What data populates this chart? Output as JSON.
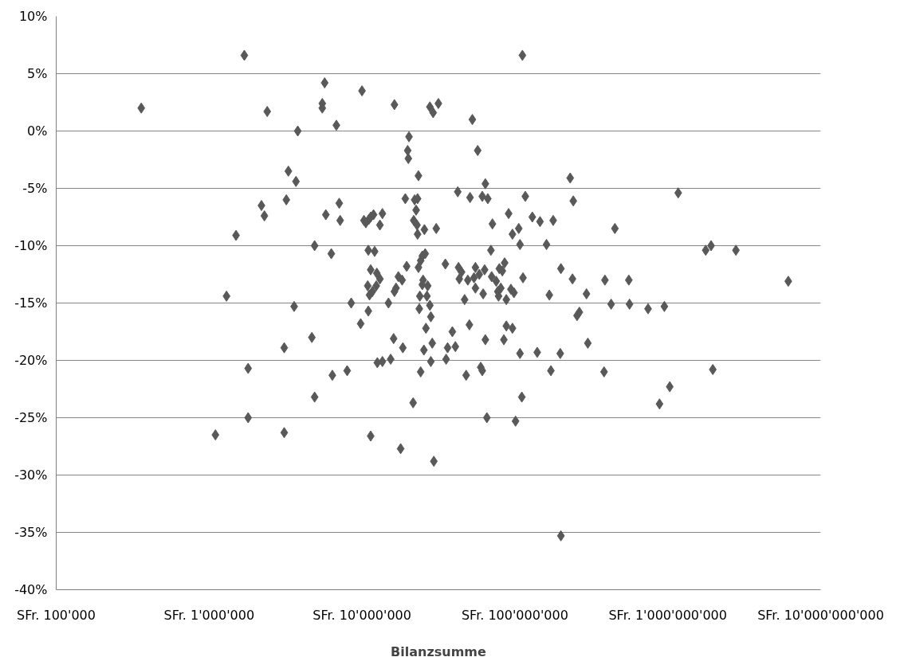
{
  "chart_data": {
    "type": "scatter",
    "xlabel": "Bilanzsumme",
    "log": "x",
    "grid": "y",
    "marker": "diamond",
    "color": "#595959",
    "xlim": [
      100000,
      10000000000
    ],
    "xticks": [
      {
        "value": 100000,
        "label": "SFr. 100'000"
      },
      {
        "value": 1000000,
        "label": "SFr. 1'000'000"
      },
      {
        "value": 10000000,
        "label": "SFr. 10'000'000"
      },
      {
        "value": 100000000,
        "label": "SFr. 100'000'000"
      },
      {
        "value": 1000000000,
        "label": "SFr. 1'000'000'000"
      },
      {
        "value": 10000000000,
        "label": "SFr. 10'000'000'000"
      }
    ],
    "ylim": [
      -40,
      10
    ],
    "yticks": [
      {
        "value": 10,
        "label": "10%"
      },
      {
        "value": 5,
        "label": "5%"
      },
      {
        "value": 0,
        "label": "0%"
      },
      {
        "value": -5,
        "label": "-5%"
      },
      {
        "value": -10,
        "label": "-10%"
      },
      {
        "value": -15,
        "label": "-15%"
      },
      {
        "value": -20,
        "label": "-20%"
      },
      {
        "value": -25,
        "label": "-25%"
      },
      {
        "value": -30,
        "label": "-30%"
      },
      {
        "value": -35,
        "label": "-35%"
      },
      {
        "value": -40,
        "label": "-40%"
      }
    ],
    "x": [
      360000.0,
      1100000.0,
      1300000.0,
      1500000.0,
      1700000.0,
      1800000.0,
      1800000.0,
      2200000.0,
      2300000.0,
      2400000.0,
      3100000.0,
      3200000.0,
      3300000.0,
      3700000.0,
      3600000.0,
      3800000.0,
      3100000.0,
      4700000.0,
      4900000.0,
      4900000.0,
      5500000.0,
      5500000.0,
      5700000.0,
      5800000.0,
      6300000.0,
      6400000.0,
      6800000.0,
      7100000.0,
      7200000.0,
      8000000.0,
      8500000.0,
      9800000.0,
      10000000.0,
      10300000.0,
      10600000.0,
      10900000.0,
      11000000.0,
      11100000.0,
      11400000.0,
      11000000.0,
      11200000.0,
      11700000.0,
      11400000.0,
      11400000.0,
      11900000.0,
      12100000.0,
      12400000.0,
      12500000.0,
      12600000.0,
      13100000.0,
      13100000.0,
      13600000.0,
      13600000.0,
      14900000.0,
      15400000.0,
      16100000.0,
      16300000.0,
      16300000.0,
      16700000.0,
      17300000.0,
      17900000.0,
      18300000.0,
      18500000.0,
      19200000.0,
      19600000.0,
      19900000.0,
      20100000.0,
      20300000.0,
      21600000.0,
      21800000.0,
      22100000.0,
      22600000.0,
      22900000.0,
      23100000.0,
      23100000.0,
      23400000.0,
      23400000.0,
      23700000.0,
      23900000.0,
      24200000.0,
      24200000.0,
      24800000.0,
      24800000.0,
      25100000.0,
      25400000.0,
      25600000.0,
      25900000.0,
      26200000.0,
      26600000.0,
      26900000.0,
      27800000.0,
      28200000.0,
      28200000.0,
      28800000.0,
      29500000.0,
      27800000.0,
      29200000.0,
      31600000.0,
      30600000.0,
      35100000.0,
      35500000.0,
      36300000.0,
      39000000.0,
      40800000.0,
      42300000.0,
      42800000.0,
      43300000.0,
      44800000.0,
      46900000.0,
      48000000.0,
      49200000.0,
      50400000.0,
      50900000.0,
      52700000.0,
      54000000.0,
      55200000.0,
      55200000.0,
      57100000.0,
      58500000.0,
      59800000.0,
      61200000.0,
      62000000.0,
      63400000.0,
      64100000.0,
      64100000.0,
      61200000.0,
      65600000.0,
      66500000.0,
      69700000.0,
      70500000.0,
      71300000.0,
      75500000.0,
      77300000.0,
      78200000.0,
      79100000.0,
      80900000.0,
      82800000.0,
      84700000.0,
      85700000.0,
      87900000.0,
      87900000.0,
      91000000.0,
      94200000.0,
      96400000.0,
      98600000.0,
      101000000.0,
      106000000.0,
      108000000.0,
      111000000.0,
      112000000.0,
      113000000.0,
      117000000.0,
      96400000.0,
      108000000.0,
      130000000.0,
      146000000.0,
      161000000.0,
      140000000.0,
      168000000.0,
      230000000.0,
      241000000.0,
      178000000.0,
      200000000.0,
      238000000.0,
      198000000.0,
      172000000.0,
      200000000.0,
      255000000.0,
      264000000.0,
      294000000.0,
      300000000.0,
      383000000.0,
      388000000.0,
      426000000.0,
      451000000.0,
      556000000.0,
      562000000.0,
      743000000.0,
      950000000.0,
      883000000.0,
      1030000000.0,
      1170000000.0,
      1770000000.0,
      1920000000.0,
      2790000000.0,
      1970000000.0,
      6140000000.0
    ],
    "values": [
      2.0,
      -26.5,
      -14.4,
      -9.1,
      6.6,
      -20.7,
      -25.0,
      -6.5,
      -7.4,
      1.7,
      -18.9,
      -6.0,
      -3.5,
      -4.4,
      -15.3,
      0.0,
      -26.3,
      -18.0,
      -23.2,
      -10.0,
      2.4,
      2.0,
      4.2,
      -7.3,
      -10.7,
      -21.3,
      0.5,
      -6.3,
      -7.8,
      -20.9,
      -15.0,
      -16.8,
      3.5,
      -7.8,
      -8.0,
      -13.5,
      -15.7,
      -7.7,
      -7.5,
      -10.4,
      -14.3,
      -14.0,
      -12.1,
      -26.6,
      -7.3,
      -10.5,
      -13.5,
      -12.4,
      -20.2,
      -8.2,
      -12.9,
      -7.2,
      -20.1,
      -15.0,
      -19.9,
      -18.1,
      2.3,
      -14.0,
      -13.7,
      -12.7,
      -27.7,
      -13.0,
      -18.9,
      -5.9,
      -11.8,
      -1.7,
      -2.4,
      -0.5,
      -23.7,
      -7.8,
      -6.0,
      -6.9,
      -8.2,
      -5.9,
      -9.0,
      -3.9,
      -11.9,
      -15.5,
      -14.4,
      -21.0,
      -11.3,
      -10.9,
      -13.4,
      -13.0,
      -19.1,
      -8.6,
      -10.7,
      -17.2,
      -14.4,
      -13.5,
      -15.2,
      -16.2,
      -20.1,
      -18.5,
      -28.8,
      2.1,
      1.6,
      2.4,
      -8.5,
      -11.6,
      -19.9,
      -18.9,
      -17.5,
      -18.8,
      -5.3,
      -11.9,
      -12.9,
      -12.3,
      -14.7,
      -21.3,
      -13.0,
      -16.9,
      -5.8,
      1.0,
      -12.8,
      -13.7,
      -11.9,
      -1.7,
      -12.5,
      -20.6,
      -20.9,
      -14.2,
      -12.1,
      -18.2,
      -4.6,
      -5.7,
      -25.0,
      -5.9,
      -10.4,
      -12.7,
      -8.1,
      -13.1,
      -14.0,
      -14.4,
      -12.0,
      -13.7,
      -12.2,
      -18.2,
      -11.5,
      -14.7,
      -17.0,
      -7.2,
      -13.8,
      -17.2,
      -14.1,
      -25.3,
      -8.5,
      -19.4,
      -23.2,
      6.6,
      -12.8,
      -5.7,
      -9.0,
      -9.9,
      -7.5,
      -7.9,
      -9.9,
      -19.3,
      -14.3,
      -4.1,
      -6.1,
      -7.8,
      -12.0,
      -12.9,
      -19.4,
      -20.9,
      -35.3,
      -16.1,
      -15.8,
      -14.2,
      -18.5,
      -21.0,
      -13.0,
      -15.1,
      -8.5,
      -13.0,
      -15.1,
      -15.5,
      -15.3,
      -23.8,
      -22.3,
      -5.4,
      -10.4,
      -10.0,
      -10.4,
      -20.8,
      -13.1
    ]
  }
}
